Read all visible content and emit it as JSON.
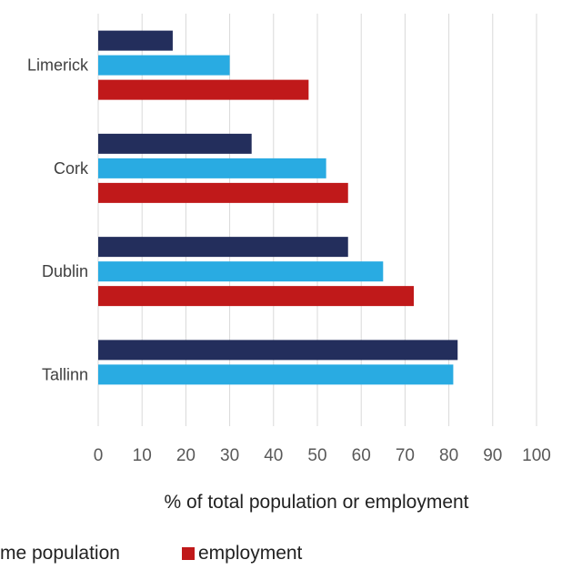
{
  "chart_data": {
    "type": "bar",
    "orientation": "horizontal",
    "categories": [
      "Limerick",
      "Cork",
      "Dublin",
      "Tallinn"
    ],
    "series": [
      {
        "name": "",
        "color": "#232e5c",
        "values": [
          17,
          35,
          57,
          82
        ]
      },
      {
        "name": "me population",
        "color": "#29abe2",
        "values": [
          30,
          52,
          65,
          81
        ]
      },
      {
        "name": "employment",
        "color": "#c0191a",
        "values": [
          48,
          57,
          72,
          null
        ]
      }
    ],
    "title": "",
    "xlabel": "% of total population or employment",
    "ylabel": "",
    "xlim": [
      0,
      100
    ],
    "xticks": [
      0,
      10,
      20,
      30,
      40,
      50,
      60,
      70,
      80,
      90,
      100
    ],
    "grid": true,
    "legend_position": "bottom"
  }
}
